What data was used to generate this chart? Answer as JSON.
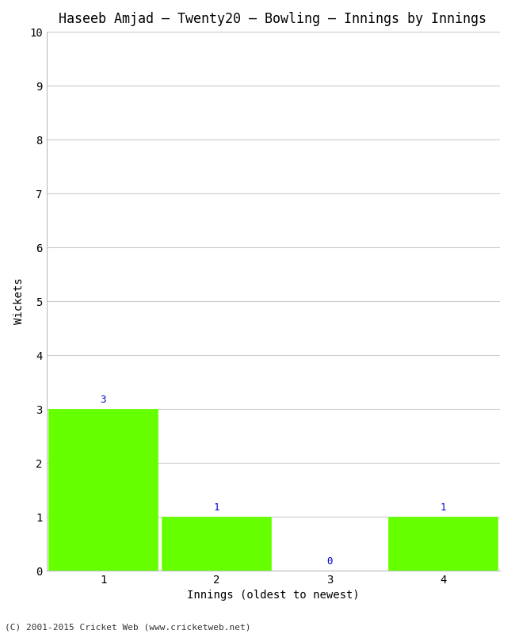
{
  "title": "Haseeb Amjad – Twenty20 – Bowling – Innings by Innings",
  "xlabel": "Innings (oldest to newest)",
  "ylabel": "Wickets",
  "categories": [
    "1",
    "2",
    "3",
    "4"
  ],
  "values": [
    3,
    1,
    0,
    1
  ],
  "bar_color": "#66ff00",
  "bar_edge_color": "#66ff00",
  "label_color": "#0000cc",
  "background_color": "#ffffff",
  "plot_background": "#ffffff",
  "ylim": [
    0,
    10
  ],
  "yticks": [
    0,
    1,
    2,
    3,
    4,
    5,
    6,
    7,
    8,
    9,
    10
  ],
  "grid_color": "#cccccc",
  "title_fontsize": 12,
  "axis_label_fontsize": 10,
  "tick_fontsize": 10,
  "value_label_fontsize": 9,
  "footer": "(C) 2001-2015 Cricket Web (www.cricketweb.net)",
  "footer_fontsize": 8
}
